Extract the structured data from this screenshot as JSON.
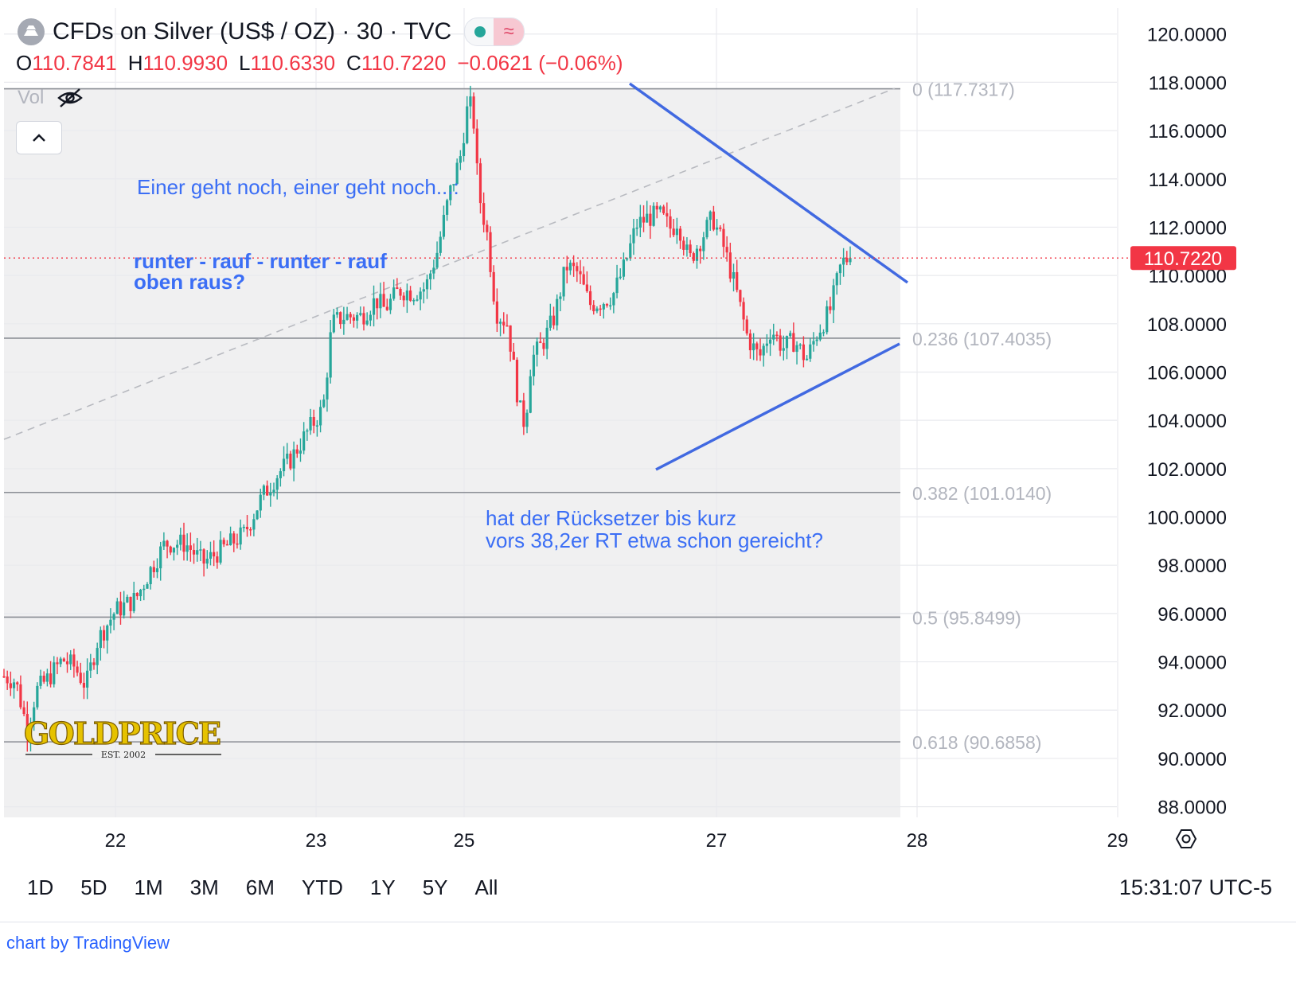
{
  "header": {
    "title": "CFDs on Silver (US$ / OZ) · 30 · TVC",
    "wave_icon": "≈",
    "ohlc": [
      {
        "k": "O",
        "v": "110.7841"
      },
      {
        "k": "H",
        "v": "110.9930"
      },
      {
        "k": "L",
        "v": "110.6330"
      },
      {
        "k": "C",
        "v": "110.7220"
      }
    ],
    "change": "−0.0621 (−0.06%)",
    "vol_label": "Vol",
    "collapse_icon": "^"
  },
  "chart_data": {
    "type": "candlestick",
    "y_ticks": [
      "120.0000",
      "118.0000",
      "116.0000",
      "114.0000",
      "112.0000",
      "110.0000",
      "108.0000",
      "106.0000",
      "104.0000",
      "102.0000",
      "100.0000",
      "98.0000",
      "96.0000",
      "94.0000",
      "92.0000",
      "90.0000",
      "88.0000"
    ],
    "ylim": [
      87.3,
      121.0
    ],
    "x_ticks": [
      "22",
      "23",
      "25",
      "27",
      "28",
      "29"
    ],
    "last_price": "110.7220",
    "fib_levels": [
      {
        "label": "0 (117.7317)",
        "value": 117.7317
      },
      {
        "label": "0.236 (107.4035)",
        "value": 107.4035
      },
      {
        "label": "0.382 (101.0140)",
        "value": 101.014
      },
      {
        "label": "0.5 (95.8499)",
        "value": 95.8499
      },
      {
        "label": "0.618 (90.6858)",
        "value": 90.6858
      }
    ],
    "annotations": [
      "Einer geht noch, einer geht noch...:",
      "runter - rauf - runter - rauf",
      "oben raus?",
      "hat der Rücksetzer bis kurz",
      "vors 38,2er RT etwa schon gereicht?"
    ],
    "price_path": [
      [
        0,
        93.4
      ],
      [
        0.04,
        93.2
      ],
      [
        0.08,
        91.2
      ],
      [
        0.11,
        92.8
      ],
      [
        0.15,
        93.3
      ],
      [
        0.2,
        94.1
      ],
      [
        0.24,
        93.8
      ],
      [
        0.28,
        93.0
      ],
      [
        0.32,
        94.9
      ],
      [
        0.38,
        96.1
      ],
      [
        0.45,
        96.6
      ],
      [
        0.5,
        97.8
      ],
      [
        0.55,
        98.9
      ],
      [
        0.62,
        98.9
      ],
      [
        0.68,
        98.1
      ],
      [
        0.75,
        98.7
      ],
      [
        0.82,
        99.3
      ],
      [
        0.88,
        100.8
      ],
      [
        0.93,
        101.7
      ],
      [
        0.98,
        102.4
      ],
      [
        1.04,
        103.6
      ],
      [
        1.09,
        104.5
      ],
      [
        1.12,
        108.0
      ],
      [
        1.16,
        108.3
      ],
      [
        1.22,
        108.3
      ],
      [
        1.27,
        109.0
      ],
      [
        1.3,
        108.6
      ],
      [
        1.35,
        109.4
      ],
      [
        1.4,
        109.3
      ],
      [
        1.44,
        109.5
      ],
      [
        1.48,
        111.0
      ],
      [
        1.52,
        113.3
      ],
      [
        1.56,
        115.0
      ],
      [
        1.58,
        116.8
      ],
      [
        1.6,
        117.1
      ],
      [
        1.62,
        113.5
      ],
      [
        1.65,
        111.7
      ],
      [
        1.68,
        108.5
      ],
      [
        1.72,
        108.0
      ],
      [
        1.76,
        104.5
      ],
      [
        1.78,
        103.8
      ],
      [
        1.8,
        106.5
      ],
      [
        1.84,
        107.2
      ],
      [
        1.88,
        108.3
      ],
      [
        1.92,
        110.4
      ],
      [
        1.96,
        110.1
      ],
      [
        2.0,
        108.8
      ],
      [
        2.04,
        108.9
      ],
      [
        2.08,
        109.2
      ],
      [
        2.12,
        110.4
      ],
      [
        2.16,
        112.1
      ],
      [
        2.2,
        112.4
      ],
      [
        2.24,
        112.5
      ],
      [
        2.28,
        111.9
      ],
      [
        2.3,
        112.3
      ],
      [
        2.34,
        110.6
      ],
      [
        2.38,
        111.5
      ],
      [
        2.42,
        112.4
      ],
      [
        2.46,
        111.1
      ],
      [
        2.5,
        109.4
      ],
      [
        2.54,
        107.4
      ],
      [
        2.58,
        106.6
      ],
      [
        2.62,
        107.8
      ],
      [
        2.66,
        107.0
      ],
      [
        2.7,
        107.3
      ],
      [
        2.74,
        106.5
      ],
      [
        2.78,
        107.7
      ],
      [
        2.82,
        108.5
      ],
      [
        2.86,
        110.5
      ],
      [
        2.89,
        110.8
      ]
    ]
  },
  "range_buttons": [
    "1D",
    "5D",
    "1M",
    "3M",
    "6M",
    "YTD",
    "1Y",
    "5Y",
    "All"
  ],
  "clock": "15:31:07 UTC-5",
  "credit": "chart by TradingView",
  "watermark": {
    "name": "GOLDPRICE",
    "est": "EST. 2002"
  },
  "colors": {
    "up": "#26a69a",
    "down": "#f23645",
    "pattern": "#4169e1",
    "annotation": "#3b6ef5",
    "fib": "#9598a1"
  }
}
